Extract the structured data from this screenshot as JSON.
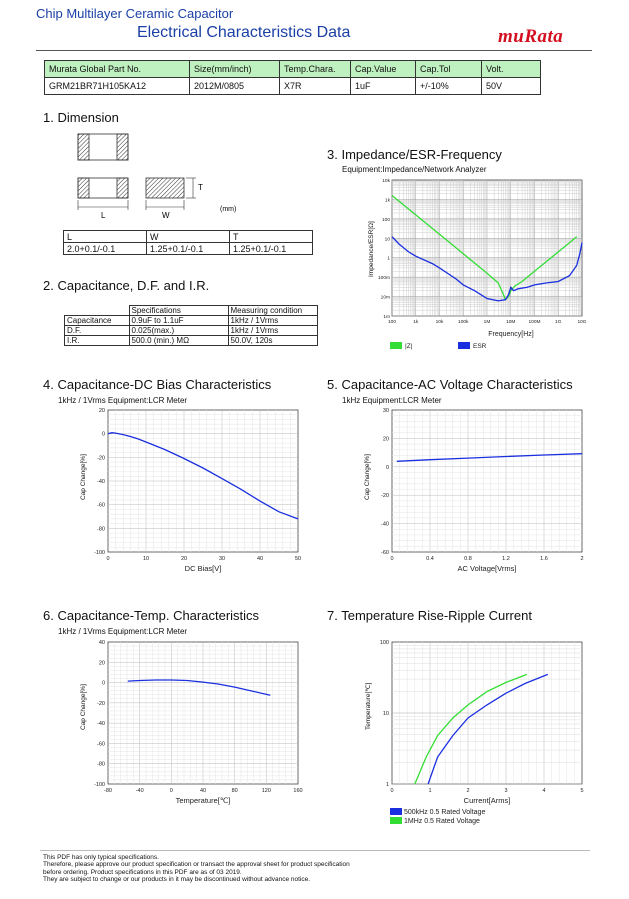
{
  "header": {
    "subtitle": "Chip Multilayer Ceramic Capacitor",
    "title": "Electrical Characteristics Data",
    "logo": "muRata"
  },
  "spec_table": {
    "headers": [
      "Murata Global Part No.",
      "Size(mm/inch)",
      "Temp.Chara.",
      "Cap.Value",
      "Cap.Tol",
      "Volt."
    ],
    "values": [
      "GRM21BR71H105KA12",
      "2012M/0805",
      "X7R",
      "1uF",
      "+/-10%",
      "50V"
    ]
  },
  "sections": {
    "s1": "1. Dimension",
    "s2": "2. Capacitance, D.F. and I.R.",
    "s3": "3. Impedance/ESR-Frequency",
    "s4": "4. Capacitance-DC Bias Characteristics",
    "s5": "5. Capacitance-AC Voltage Characteristics",
    "s6": "6. Capacitance-Temp. Characteristics",
    "s7": "7. Temperature Rise-Ripple Current"
  },
  "dimension": {
    "label_L": "L",
    "label_W": "W",
    "label_T": "T",
    "unit": "(mm)",
    "headers": [
      "L",
      "W",
      "T"
    ],
    "values": [
      "2.0+0.1/-0.1",
      "1.25+0.1/-0.1",
      "1.25+0.1/-0.1"
    ]
  },
  "capacitance_table": {
    "headers": [
      "",
      "Specifications",
      "Measuring condition"
    ],
    "rows": [
      [
        "Capacitance",
        "0.9uF to 1.1uF",
        "1kHz / 1Vrms"
      ],
      [
        "D.F.",
        "0.025(max.)",
        "1kHz / 1Vrms"
      ],
      [
        "I.R.",
        "500.0 (min.) MΩ",
        "50.0V, 120s"
      ]
    ]
  },
  "conditions": {
    "imp": "Equipment:Impedance/Network Analyzer",
    "dc": "1kHz / 1Vrms    Equipment:LCR Meter",
    "ac": "1kHz    Equipment:LCR Meter",
    "temp": "1kHz / 1Vrms    Equipment:LCR Meter"
  },
  "footer": [
    "This PDF has only typical specifications.",
    "Therefore, please approve our product specification or transact the approval sheet for product specification",
    "before ordering. Product specifications in this PDF are as of 03 2019.",
    "They are subject to change or our products in it may be discontinued without advance notice."
  ],
  "colors": {
    "brand": "#d40f1f",
    "title": "#1a3fa6",
    "header_fill": "#bff0bf",
    "z": "#33dd33",
    "esr": "#1a2fe0"
  },
  "chart_data": [
    {
      "type": "line",
      "scale": "log-log",
      "xlabel": "Frequency[Hz]",
      "ylabel": "Impedance/ESR[Ω]",
      "xticks": [
        "100",
        "1k",
        "10k",
        "100k",
        "1M",
        "10M",
        "100M",
        "1G",
        "10G"
      ],
      "yticks": [
        "10k",
        "1k",
        "100",
        "10",
        "1",
        "100m",
        "10m",
        "1m"
      ],
      "xlim": [
        100,
        10000000000
      ],
      "ylim": [
        0.001,
        10000
      ],
      "series": [
        {
          "name": "|Z|",
          "color": "#33dd33",
          "x": [
            100,
            1000,
            10000,
            100000,
            1000000,
            3000000,
            5000000,
            6000000,
            8000000,
            10000000,
            15000000,
            30000000,
            100000000,
            300000000,
            1000000000,
            3000000000,
            6000000000
          ],
          "y": [
            1590,
            159,
            16,
            1.6,
            0.16,
            0.05,
            0.012,
            0.007,
            0.01,
            0.02,
            0.035,
            0.06,
            0.2,
            0.6,
            2,
            6,
            12
          ]
        },
        {
          "name": "ESR",
          "color": "#1a2fe0",
          "x": [
            100,
            200,
            500,
            1000,
            5000,
            10000,
            50000,
            100000,
            300000,
            1000000,
            3000000,
            6000000,
            8000000,
            10000000,
            13000000,
            20000000,
            50000000,
            100000000,
            300000000,
            1000000000,
            3000000000,
            6000000000,
            8000000000,
            10000000000
          ],
          "y": [
            12,
            5,
            2,
            1.2,
            0.5,
            0.3,
            0.08,
            0.04,
            0.02,
            0.008,
            0.006,
            0.007,
            0.012,
            0.03,
            0.02,
            0.025,
            0.03,
            0.04,
            0.05,
            0.06,
            0.12,
            0.4,
            1.5,
            6
          ]
        }
      ]
    },
    {
      "type": "line",
      "xlabel": "DC Bias[V]",
      "ylabel": "Cap Change[%]",
      "xlim": [
        0,
        50
      ],
      "ylim": [
        -100,
        20
      ],
      "xticks": [
        "0",
        "10",
        "20",
        "30",
        "40",
        "50"
      ],
      "yticks": [
        "20",
        "0",
        "-20",
        "-40",
        "-60",
        "-80",
        "-100"
      ],
      "series": [
        {
          "color": "#1a2fe0",
          "x": [
            0,
            1,
            2,
            4,
            6,
            8,
            10,
            15,
            20,
            25,
            30,
            35,
            40,
            45,
            50
          ],
          "y": [
            0,
            0.8,
            0.5,
            -0.8,
            -2.5,
            -4.5,
            -7,
            -13.5,
            -21,
            -29,
            -38,
            -47,
            -57,
            -66,
            -72
          ]
        }
      ]
    },
    {
      "type": "line",
      "xlabel": "AC Voltage[Vrms]",
      "ylabel": "Cap Change[%]",
      "xlim": [
        0,
        2
      ],
      "ylim": [
        -60,
        30
      ],
      "xticks": [
        "0",
        "0.4",
        "0.8",
        "1.2",
        "1.6",
        "2"
      ],
      "yticks": [
        "30",
        "20",
        "0",
        "-20",
        "-40",
        "-60"
      ],
      "series": [
        {
          "color": "#1a2fe0",
          "x": [
            0.05,
            0.4,
            0.8,
            1.2,
            1.6,
            2.0
          ],
          "y": [
            -2.5,
            -1.5,
            -0.5,
            0.5,
            1.5,
            2.3
          ]
        }
      ]
    },
    {
      "type": "line",
      "xlabel": "Temperature[℃]",
      "ylabel": "Cap Change[%]",
      "xlim": [
        -80,
        160
      ],
      "ylim": [
        -100,
        40
      ],
      "xticks": [
        "-80",
        "-40",
        "0",
        "40",
        "80",
        "120",
        "160"
      ],
      "yticks": [
        "40",
        "20",
        "0",
        "-20",
        "-40",
        "-60",
        "-80",
        "-100"
      ],
      "series": [
        {
          "color": "#1a2fe0",
          "x": [
            -55,
            -40,
            -20,
            0,
            20,
            40,
            60,
            80,
            100,
            125
          ],
          "y": [
            1.5,
            2,
            2.5,
            2.5,
            2,
            0.5,
            -1.5,
            -4.5,
            -8,
            -12.5
          ]
        }
      ]
    },
    {
      "type": "line",
      "scale": "log-y",
      "xlabel": "Current[Arms]",
      "ylabel": "Temperature[℃]",
      "xlim": [
        0,
        5
      ],
      "ylim": [
        1,
        100
      ],
      "xticks": [
        "0",
        "1",
        "2",
        "3",
        "4",
        "5"
      ],
      "yticks": [
        "100",
        "10",
        "1"
      ],
      "series": [
        {
          "name": "500kHz 0.5 Rated Voltage",
          "color": "#1a2fe0",
          "x": [
            0.95,
            1.2,
            1.6,
            2.0,
            2.5,
            3.0,
            3.5,
            4.1
          ],
          "y": [
            1,
            2.4,
            4.8,
            8.5,
            13,
            19,
            26,
            35
          ]
        },
        {
          "name": "1MHz 0.5 Rated Voltage",
          "color": "#33dd33",
          "x": [
            0.6,
            0.9,
            1.2,
            1.6,
            2.0,
            2.5,
            3.0,
            3.55
          ],
          "y": [
            1,
            2.4,
            4.8,
            8.5,
            13,
            20,
            27,
            35
          ]
        }
      ]
    }
  ]
}
